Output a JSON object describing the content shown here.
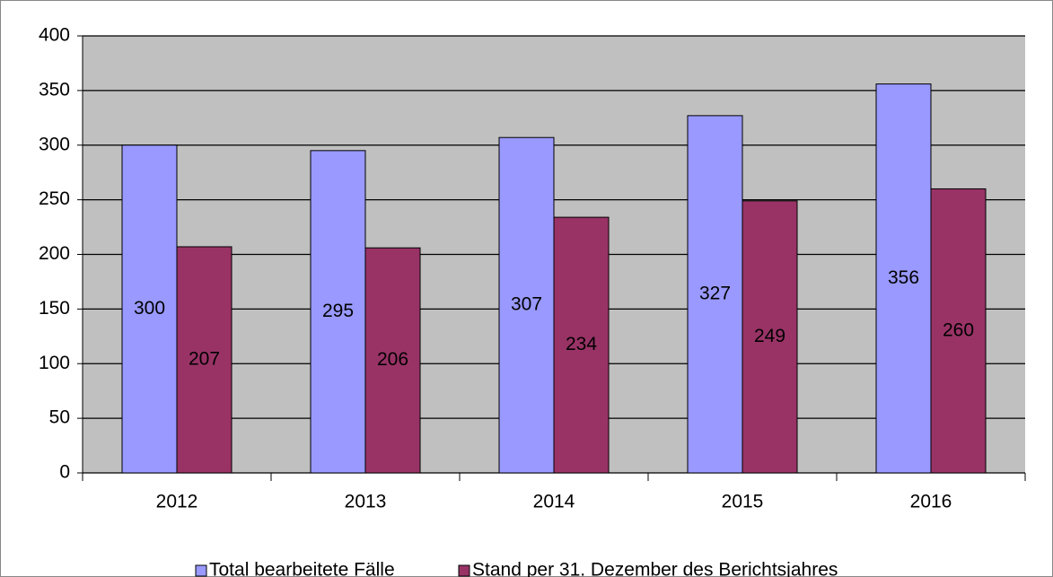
{
  "chart_data": {
    "type": "bar",
    "categories": [
      "2012",
      "2013",
      "2014",
      "2015",
      "2016"
    ],
    "series": [
      {
        "name": "Total bearbeitete Fälle",
        "color": "#9999ff",
        "values": [
          300,
          295,
          307,
          327,
          356
        ]
      },
      {
        "name": "Stand per 31. Dezember des Berichtsjahres",
        "color": "#993366",
        "values": [
          207,
          206,
          234,
          249,
          260
        ]
      }
    ],
    "ylim": [
      0,
      400
    ],
    "yticks": [
      0,
      50,
      100,
      150,
      200,
      250,
      300,
      350,
      400
    ],
    "grid": true,
    "legend": "bottom",
    "data_labels": true,
    "plot_background": "#c0c0c0"
  }
}
